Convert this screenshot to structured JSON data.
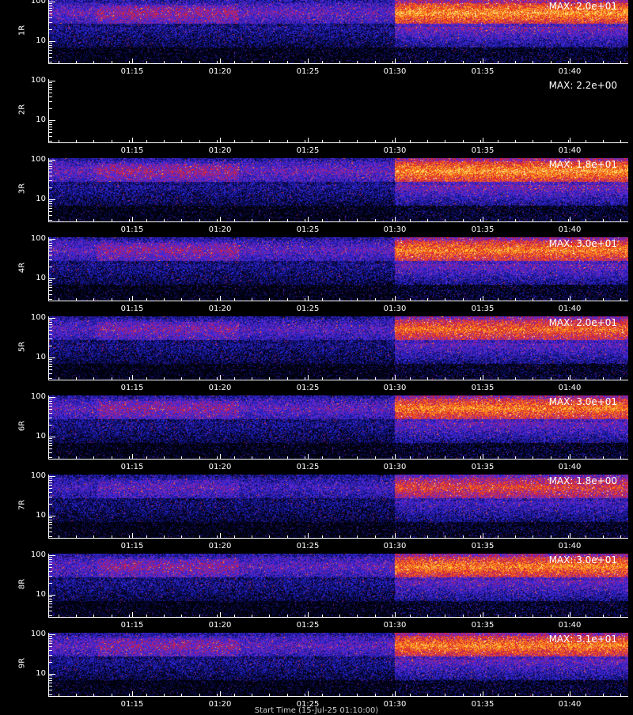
{
  "chart_data": {
    "type": "heatmap",
    "x_ticks": [
      "01:15",
      "01:20",
      "01:25",
      "01:30",
      "01:35",
      "01:40"
    ],
    "y_ticks": [
      "100",
      "10"
    ],
    "y_scale": "log",
    "colormap": "blue-red-yellow-white on black",
    "panels": [
      {
        "label": "1R",
        "max_label": "MAX: 2.0e+01",
        "intensity": 1.0
      },
      {
        "label": "2R",
        "max_label": "MAX: 2.2e+00",
        "intensity": 0.0
      },
      {
        "label": "3R",
        "max_label": "MAX: 1.8e+01",
        "intensity": 1.0
      },
      {
        "label": "4R",
        "max_label": "MAX: 3.0e+01",
        "intensity": 0.95
      },
      {
        "label": "5R",
        "max_label": "MAX: 2.0e+01",
        "intensity": 0.9
      },
      {
        "label": "6R",
        "max_label": "MAX: 3.0e+01",
        "intensity": 0.95
      },
      {
        "label": "7R",
        "max_label": "MAX: 1.8e+00",
        "intensity": 0.8
      },
      {
        "label": "8R",
        "max_label": "MAX: 3.0e+01",
        "intensity": 0.95
      },
      {
        "label": "9R",
        "max_label": "MAX: 3.1e+01",
        "intensity": 0.95
      }
    ],
    "x_title": "Start Time (15-Jul-25 01:10:00)"
  }
}
